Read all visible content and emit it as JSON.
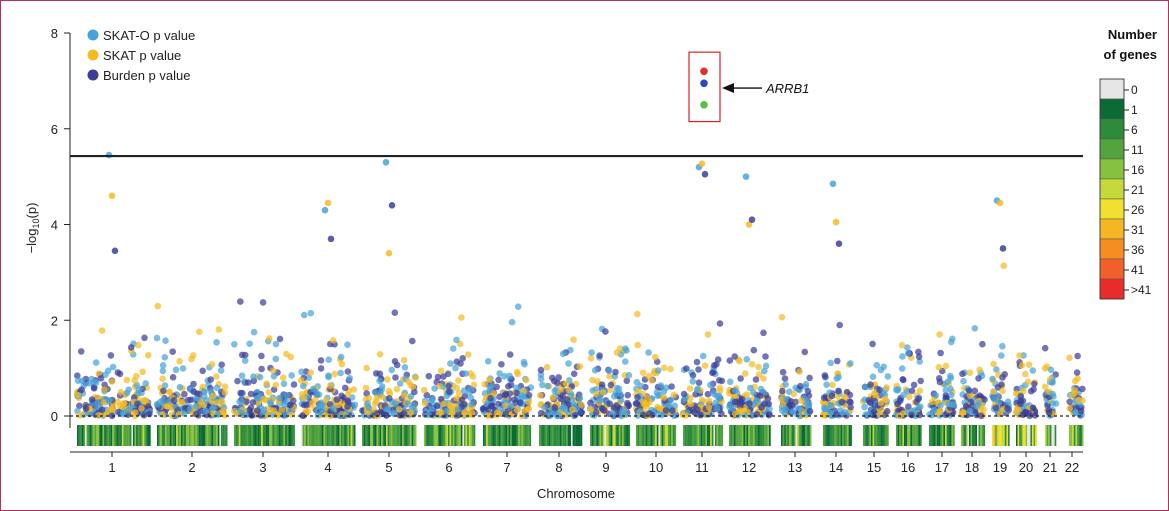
{
  "chart_data": {
    "type": "scatter",
    "title": "",
    "xlabel": "Chromosome",
    "ylabel": "−log10(p)",
    "ylabel_main": "−log",
    "ylabel_sub": "10",
    "ylabel_tail": "(p)",
    "ylim": [
      -0.3,
      8
    ],
    "yticks": [
      0,
      2,
      4,
      6,
      8
    ],
    "significance_threshold": 5.43,
    "chromosomes": [
      "1",
      "2",
      "3",
      "4",
      "5",
      "6",
      "7",
      "8",
      "9",
      "10",
      "11",
      "12",
      "13",
      "14",
      "15",
      "16",
      "17",
      "18",
      "19",
      "20",
      "21",
      "22"
    ],
    "series": [
      {
        "name": "SKAT-O p value",
        "color": "#4aa3d8"
      },
      {
        "name": "SKAT p value",
        "color": "#f4bb22"
      },
      {
        "name": "Burden p value",
        "color": "#3b3f9a"
      }
    ],
    "top_points": [
      {
        "chromosome": "1",
        "skato": 5.45,
        "skat": 4.6,
        "burden": 3.45
      },
      {
        "chromosome": "4",
        "skato": 4.3,
        "skat": 4.45,
        "burden": 3.7
      },
      {
        "chromosome": "5",
        "skato": 5.3,
        "skat": 3.4,
        "burden": 4.4
      },
      {
        "chromosome": "11",
        "skato": 5.2,
        "skat": 5.27,
        "burden": 5.05
      },
      {
        "chromosome": "12",
        "skato": 5.0,
        "skat": 4.0,
        "burden": 4.1
      },
      {
        "chromosome": "14",
        "skato": 4.85,
        "skat": 4.05,
        "burden": 3.6
      },
      {
        "chromosome": "19",
        "skato": 4.5,
        "skat": 4.45,
        "burden": 3.5
      }
    ],
    "highlight": {
      "label": "ARRB1",
      "chromosome": "11",
      "points": [
        {
          "value": 7.2,
          "color": "#e03030"
        },
        {
          "value": 6.95,
          "color": "#2a4bb5"
        },
        {
          "value": 6.5,
          "color": "#5ac04a"
        }
      ]
    },
    "colorbar": {
      "title_line1": "Number",
      "title_line2": "of genes",
      "labels": [
        "0",
        "1",
        "6",
        "11",
        "16",
        "21",
        "26",
        "31",
        "36",
        "41",
        ">41"
      ],
      "colors": [
        "#e6e6e6",
        "#0b6b35",
        "#2e8b3c",
        "#53a33e",
        "#86c13f",
        "#c6d93a",
        "#f0e02f",
        "#f5b623",
        "#f68d22",
        "#f1602a",
        "#e82c2c"
      ]
    },
    "grid": false,
    "legend_position": "top-left"
  }
}
